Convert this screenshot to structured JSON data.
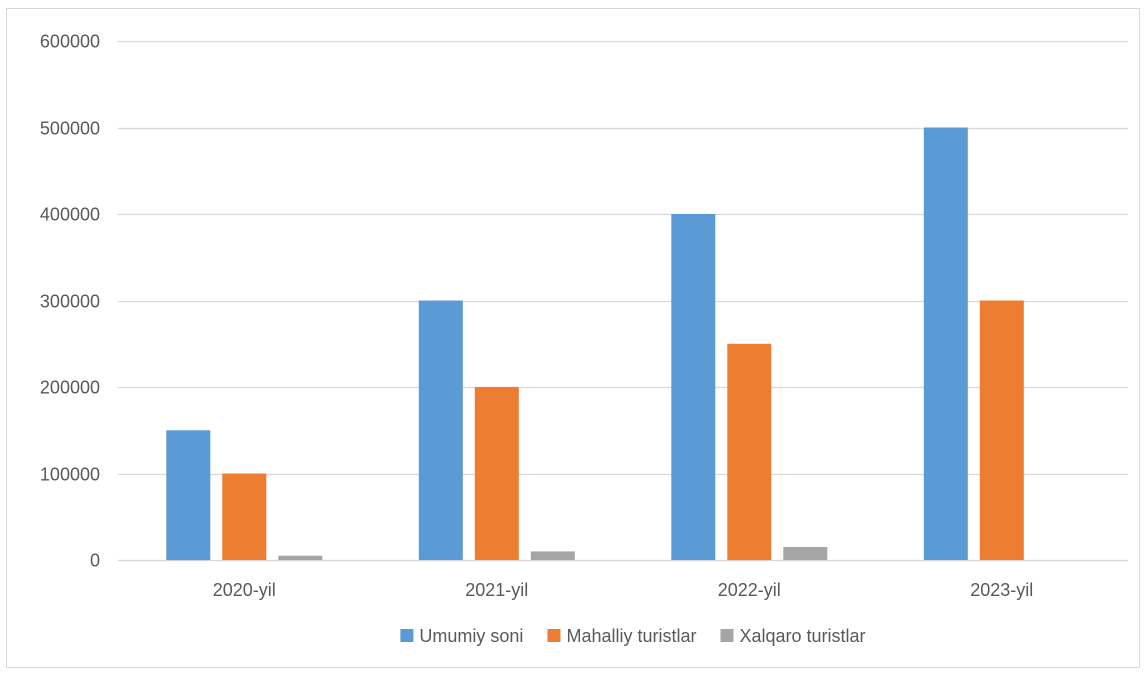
{
  "chart_data": {
    "type": "bar",
    "categories": [
      "2020-yil",
      "2021-yil",
      "2022-yil",
      "2023-yil"
    ],
    "series": [
      {
        "name": "Umumiy soni",
        "values": [
          150000,
          300000,
          400000,
          500000
        ],
        "color": "#5b9bd5"
      },
      {
        "name": "Mahalliy turistlar",
        "values": [
          100000,
          200000,
          250000,
          300000
        ],
        "color": "#ed7d31"
      },
      {
        "name": "Xalqaro turistlar",
        "values": [
          5000,
          10000,
          15000,
          0
        ],
        "color": "#a5a5a5"
      }
    ],
    "ylim": [
      0,
      600000
    ],
    "yticks": [
      0,
      100000,
      200000,
      300000,
      400000,
      500000,
      600000
    ],
    "ytick_labels": [
      "0",
      "100000",
      "200000",
      "300000",
      "400000",
      "500000",
      "600000"
    ],
    "grid": true,
    "legend_position": "bottom",
    "title": "",
    "xlabel": "",
    "ylabel": "",
    "colors": {
      "gridline": "#d9d9d9",
      "axis": "#d9d9d9",
      "text": "#595959"
    }
  }
}
